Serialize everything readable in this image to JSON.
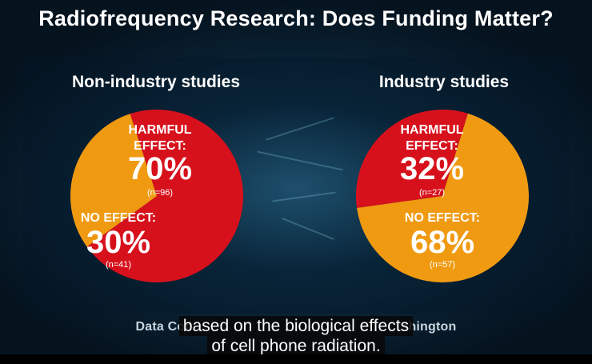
{
  "title": "Radiofrequency Research: Does Funding Matter?",
  "chart_data": [
    {
      "type": "pie",
      "title": "Non-industry studies",
      "slices": [
        {
          "label": "HARMFUL EFFECT:",
          "label_lines": [
            "HARMFUL",
            "EFFECT:"
          ],
          "percent_label": "70%",
          "value": 70,
          "n_label": "(n=96)",
          "color": "#d7111c"
        },
        {
          "label": "NO EFFECT:",
          "label_lines": [
            "NO EFFECT:"
          ],
          "percent_label": "30%",
          "value": 30,
          "n_label": "(n=41)",
          "color": "#f09a12"
        }
      ]
    },
    {
      "type": "pie",
      "title": "Industry studies",
      "slices": [
        {
          "label": "HARMFUL EFFECT:",
          "label_lines": [
            "HARMFUL",
            "EFFECT:"
          ],
          "percent_label": "32%",
          "value": 32,
          "n_label": "(n=27)",
          "color": "#d7111c"
        },
        {
          "label": "NO EFFECT:",
          "label_lines": [
            "NO EFFECT:"
          ],
          "percent_label": "68%",
          "value": 68,
          "n_label": "(n=57)",
          "color": "#f09a12"
        }
      ]
    }
  ],
  "footer": {
    "left": "Data Con",
    "right": "shington"
  },
  "captions": {
    "line1": "based on the biological effects",
    "line2": "of cell phone radiation."
  }
}
